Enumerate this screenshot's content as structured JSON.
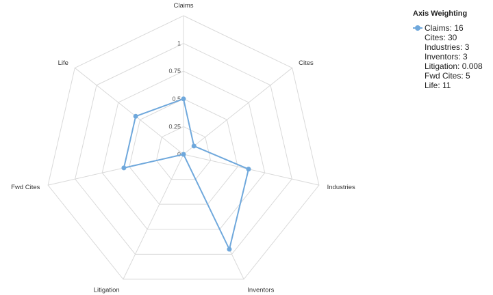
{
  "chart_data": {
    "type": "radar",
    "axes": [
      "Claims",
      "Cites",
      "Industries",
      "Inventors",
      "Litigation",
      "Fwd Cites",
      "Life"
    ],
    "ticks": [
      "0",
      "0.25",
      "0.5",
      "0.75",
      "1"
    ],
    "rlim": [
      0,
      1.25
    ],
    "grid": true,
    "series": [
      {
        "values": [
          0.5,
          0.12,
          0.6,
          0.95,
          0.0,
          0.55,
          0.55
        ]
      }
    ],
    "colors": {
      "series": "#6fa8dc",
      "grid": "#d9d9d9"
    }
  },
  "legend": {
    "title": "Axis Weighting",
    "items": [
      "Claims: 16",
      "Cites: 30",
      "Industries: 3",
      "Inventors: 3",
      "Litigation: 0.008",
      "Fwd Cites: 5",
      "Life: 11"
    ]
  }
}
